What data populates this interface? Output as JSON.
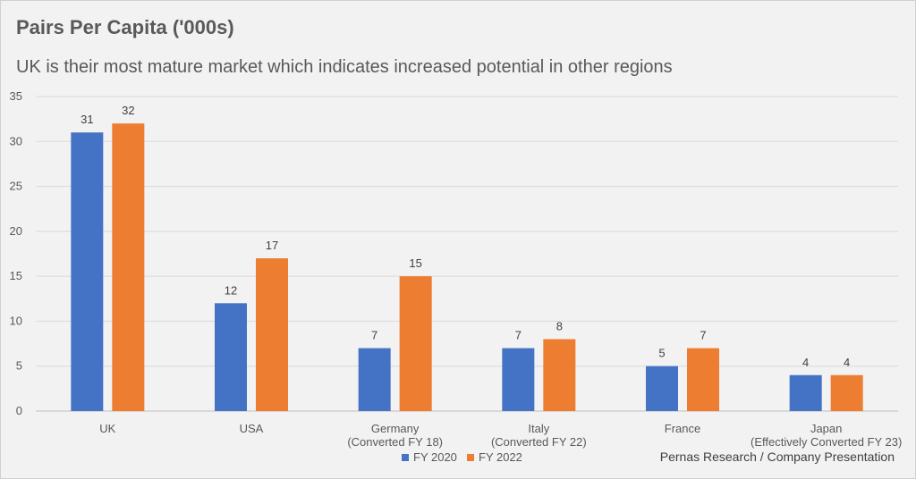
{
  "title": "Pairs Per Capita ('000s)",
  "subtitle": "UK is their most mature market which indicates increased potential in other regions",
  "source": "Pernas Research / Company Presentation",
  "colors": {
    "fy2020": "#4472c4",
    "fy2022": "#ed7d31",
    "grid": "#d9d9d9",
    "axis": "#bfbfbf"
  },
  "chart_data": {
    "type": "bar",
    "categories": [
      [
        "UK"
      ],
      [
        "USA"
      ],
      [
        "Germany",
        "(Converted FY 18)"
      ],
      [
        "Italy",
        "(Converted FY 22)"
      ],
      [
        "France"
      ],
      [
        "Japan",
        "(Effectively Converted FY 23)"
      ]
    ],
    "series": [
      {
        "name": "FY 2020",
        "values": [
          31,
          12,
          7,
          7,
          5,
          4
        ]
      },
      {
        "name": "FY 2022",
        "values": [
          32,
          17,
          15,
          8,
          7,
          4
        ]
      }
    ],
    "title": "Pairs Per Capita ('000s)",
    "ylim": [
      0,
      35
    ],
    "yticks": [
      0,
      5,
      10,
      15,
      20,
      25,
      30,
      35
    ],
    "grid": true,
    "legend": "bottom"
  }
}
